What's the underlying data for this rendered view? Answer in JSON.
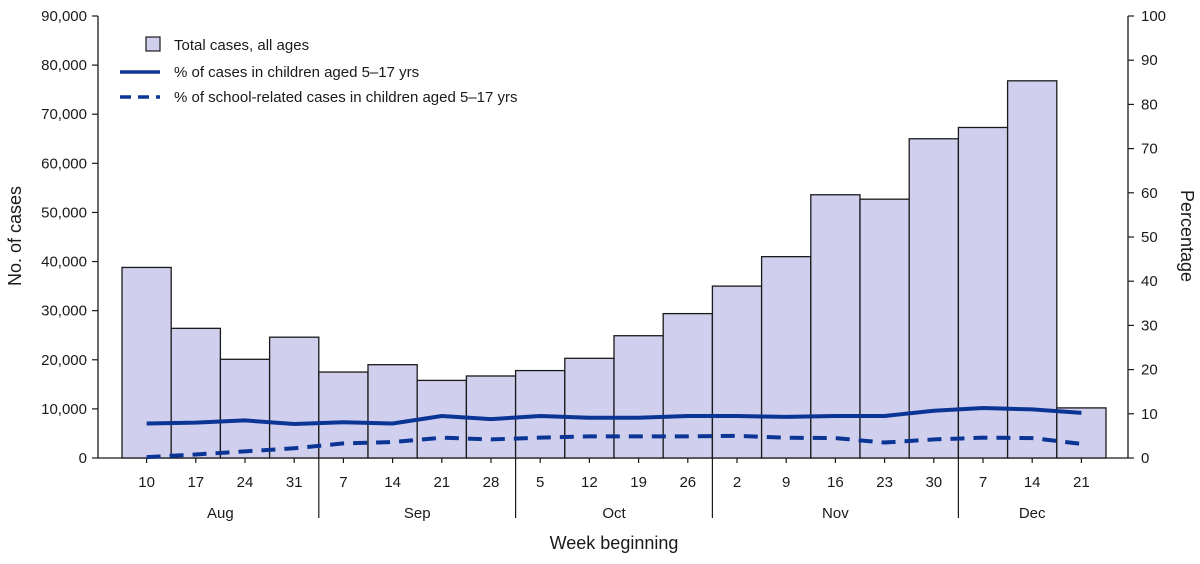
{
  "chart_data": {
    "type": "bar",
    "xlabel": "Week beginning",
    "ylabel_left": "No. of cases",
    "ylabel_right": "Percentage",
    "ylim_left": [
      0,
      90000
    ],
    "ylim_right": [
      0,
      100
    ],
    "y_ticks_left": [
      "0",
      "10,000",
      "20,000",
      "30,000",
      "40,000",
      "50,000",
      "60,000",
      "70,000",
      "80,000",
      "90,000"
    ],
    "y_ticks_right": [
      "0",
      "10",
      "20",
      "30",
      "40",
      "50",
      "60",
      "70",
      "80",
      "90",
      "100"
    ],
    "categories": [
      "10",
      "17",
      "24",
      "31",
      "7",
      "14",
      "21",
      "28",
      "5",
      "12",
      "19",
      "26",
      "2",
      "9",
      "16",
      "23",
      "30",
      "7",
      "14",
      "21"
    ],
    "months": [
      {
        "name": "Aug",
        "start": 0,
        "end": 3
      },
      {
        "name": "Sep",
        "start": 4,
        "end": 7
      },
      {
        "name": "Oct",
        "start": 8,
        "end": 11
      },
      {
        "name": "Nov",
        "start": 12,
        "end": 16
      },
      {
        "name": "Dec",
        "start": 17,
        "end": 19
      }
    ],
    "series": [
      {
        "name": "Total cases, all ages",
        "kind": "bar",
        "axis": "left",
        "color": "#d0d0ee",
        "stroke": "#1a1a1a",
        "values": [
          38800,
          26400,
          20100,
          24600,
          17500,
          19000,
          15800,
          16700,
          17800,
          20300,
          24900,
          29400,
          35000,
          41000,
          53600,
          52700,
          65000,
          67300,
          76800,
          10200
        ]
      },
      {
        "name": "% of cases in children aged 5–17 yrs",
        "kind": "line",
        "axis": "right",
        "color": "#0a3595",
        "dash": "solid",
        "values": [
          7.8,
          8.0,
          8.5,
          7.7,
          8.1,
          7.8,
          9.5,
          8.8,
          9.5,
          9.1,
          9.1,
          9.5,
          9.5,
          9.3,
          9.5,
          9.5,
          10.7,
          11.3,
          11.0,
          10.2
        ]
      },
      {
        "name": "% of school-related cases in children aged 5–17 yrs",
        "kind": "line",
        "axis": "right",
        "color": "#0a3595",
        "dash": "dashed",
        "values": [
          0.2,
          0.8,
          1.5,
          2.2,
          3.3,
          3.6,
          4.6,
          4.2,
          4.6,
          4.9,
          4.9,
          4.9,
          5.0,
          4.6,
          4.5,
          3.5,
          4.2,
          4.6,
          4.5,
          3.2
        ]
      }
    ],
    "legend": {
      "position": "top-left"
    }
  }
}
